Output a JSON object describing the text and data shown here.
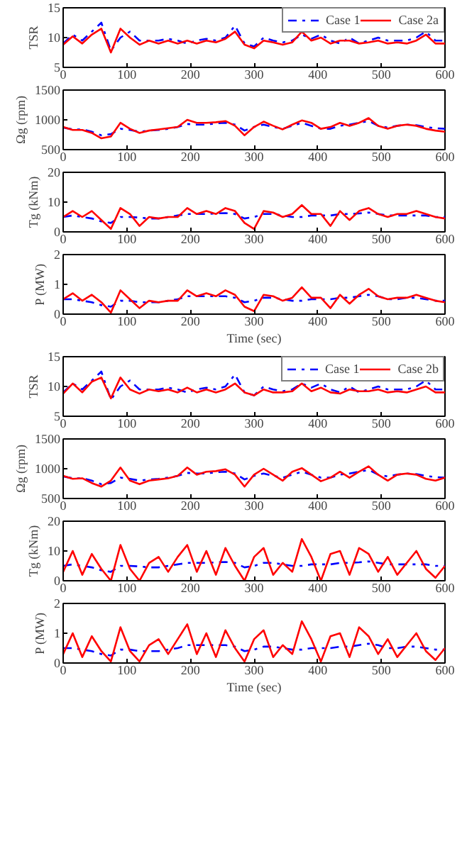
{
  "chart_data": [
    {
      "type": "line",
      "x": [
        0,
        15,
        30,
        45,
        60,
        75,
        90,
        105,
        120,
        135,
        150,
        165,
        180,
        195,
        210,
        225,
        240,
        255,
        270,
        285,
        300,
        315,
        330,
        345,
        360,
        375,
        390,
        405,
        420,
        435,
        450,
        465,
        480,
        495,
        510,
        525,
        540,
        555,
        570,
        585,
        600
      ],
      "ylabel": "TSR",
      "xlim": [
        0,
        600
      ],
      "xticks": [
        0,
        100,
        200,
        300,
        400,
        500,
        600
      ],
      "ylim": [
        5,
        15
      ],
      "yticks": [
        5,
        10,
        15
      ],
      "legend": "top right",
      "series": [
        {
          "name": "Case 1",
          "color": "#0000ff",
          "line_style": "dashed",
          "values": [
            9,
            10.5,
            9.5,
            11,
            12.5,
            7.8,
            10,
            11,
            9.5,
            9.5,
            9.5,
            9.8,
            9.5,
            9,
            9.5,
            9.8,
            9.5,
            10,
            12,
            9,
            8.5,
            10,
            9.5,
            9.2,
            9.5,
            10.5,
            9.8,
            10.5,
            9.5,
            9,
            10,
            9,
            9.5,
            10,
            9.5,
            9.5,
            9.5,
            10,
            11,
            9.5,
            9.5
          ]
        },
        {
          "name": "Case 2a",
          "color": "#ff0000",
          "line_style": "solid",
          "values": [
            8.8,
            10.2,
            9,
            10.5,
            11.5,
            7.5,
            11.5,
            10,
            8.8,
            9.5,
            9,
            9.5,
            9,
            9.5,
            9,
            9.5,
            9.2,
            9.8,
            11,
            8.8,
            8.2,
            9.5,
            9.2,
            8.8,
            9.2,
            11,
            9.5,
            10,
            9,
            9.5,
            9.5,
            9,
            9.2,
            9.5,
            9,
            9.2,
            9,
            9.5,
            10.5,
            9,
            9
          ]
        }
      ]
    },
    {
      "type": "line",
      "x": [
        0,
        15,
        30,
        45,
        60,
        75,
        90,
        105,
        120,
        135,
        150,
        165,
        180,
        195,
        210,
        225,
        240,
        255,
        270,
        285,
        300,
        315,
        330,
        345,
        360,
        375,
        390,
        405,
        420,
        435,
        450,
        465,
        480,
        495,
        510,
        525,
        540,
        555,
        570,
        585,
        600
      ],
      "ylabel": "Ωg (rpm)",
      "xlim": [
        0,
        600
      ],
      "xticks": [
        0,
        100,
        200,
        300,
        400,
        500,
        600
      ],
      "ylim": [
        500,
        1500
      ],
      "yticks": [
        500,
        1000,
        1500
      ],
      "series": [
        {
          "color": "#0000ff",
          "line_style": "dashed",
          "values": [
            870,
            840,
            840,
            800,
            740,
            760,
            850,
            830,
            800,
            820,
            830,
            850,
            880,
            930,
            920,
            920,
            940,
            950,
            920,
            820,
            880,
            920,
            880,
            850,
            900,
            950,
            900,
            850,
            850,
            900,
            920,
            950,
            980,
            900,
            870,
            900,
            920,
            910,
            880,
            860,
            850
          ]
        },
        {
          "color": "#ff0000",
          "line_style": "solid",
          "values": [
            880,
            830,
            830,
            780,
            690,
            720,
            950,
            850,
            780,
            820,
            840,
            860,
            880,
            1000,
            950,
            950,
            960,
            980,
            900,
            740,
            880,
            970,
            900,
            840,
            920,
            990,
            950,
            850,
            880,
            950,
            900,
            950,
            1030,
            900,
            850,
            900,
            920,
            900,
            850,
            820,
            800
          ]
        }
      ]
    },
    {
      "type": "line",
      "x": [
        0,
        15,
        30,
        45,
        60,
        75,
        90,
        105,
        120,
        135,
        150,
        165,
        180,
        195,
        210,
        225,
        240,
        255,
        270,
        285,
        300,
        315,
        330,
        345,
        360,
        375,
        390,
        405,
        420,
        435,
        450,
        465,
        480,
        495,
        510,
        525,
        540,
        555,
        570,
        585,
        600
      ],
      "ylabel": "Tg (kNm)",
      "xlim": [
        0,
        600
      ],
      "xticks": [
        0,
        100,
        200,
        300,
        400,
        500,
        600
      ],
      "ylim": [
        0,
        20
      ],
      "yticks": [
        0,
        10,
        20
      ],
      "series": [
        {
          "color": "#0000ff",
          "line_style": "dashed",
          "values": [
            5,
            5.5,
            5,
            4.5,
            3.5,
            3,
            5,
            5,
            4.8,
            4.5,
            4.5,
            5,
            5.5,
            6,
            6,
            6,
            6.2,
            6.3,
            6,
            4.5,
            5,
            6,
            6,
            5.5,
            5,
            5,
            5.5,
            5.5,
            5.5,
            6,
            6,
            6.2,
            6.5,
            6,
            5.5,
            5.5,
            5.5,
            5.5,
            5.5,
            5,
            5
          ]
        },
        {
          "color": "#ff0000",
          "line_style": "solid",
          "values": [
            5,
            7,
            5,
            7,
            4,
            1,
            8,
            6,
            2,
            5,
            4.5,
            5,
            5,
            8,
            6,
            7,
            6,
            8,
            7,
            3,
            1,
            7,
            6.5,
            5,
            6,
            9,
            6,
            6,
            2,
            7,
            4,
            7,
            8,
            6,
            5,
            6,
            6,
            7,
            6,
            5,
            4.5
          ]
        }
      ]
    },
    {
      "type": "line",
      "x": [
        0,
        15,
        30,
        45,
        60,
        75,
        90,
        105,
        120,
        135,
        150,
        165,
        180,
        195,
        210,
        225,
        240,
        255,
        270,
        285,
        300,
        315,
        330,
        345,
        360,
        375,
        390,
        405,
        420,
        435,
        450,
        465,
        480,
        495,
        510,
        525,
        540,
        555,
        570,
        585,
        600
      ],
      "ylabel": "P (MW)",
      "xlabel": "Time (sec)",
      "xlim": [
        0,
        600
      ],
      "xticks": [
        0,
        100,
        200,
        300,
        400,
        500,
        600
      ],
      "ylim": [
        0,
        2
      ],
      "yticks": [
        0,
        1,
        2
      ],
      "series": [
        {
          "color": "#0000ff",
          "line_style": "dashed",
          "values": [
            0.5,
            0.5,
            0.45,
            0.4,
            0.3,
            0.25,
            0.45,
            0.45,
            0.4,
            0.4,
            0.4,
            0.45,
            0.5,
            0.6,
            0.6,
            0.6,
            0.6,
            0.6,
            0.55,
            0.4,
            0.45,
            0.55,
            0.55,
            0.5,
            0.45,
            0.45,
            0.5,
            0.5,
            0.5,
            0.55,
            0.55,
            0.6,
            0.65,
            0.6,
            0.5,
            0.5,
            0.55,
            0.55,
            0.5,
            0.45,
            0.45
          ]
        },
        {
          "color": "#ff0000",
          "line_style": "solid",
          "values": [
            0.5,
            0.7,
            0.45,
            0.65,
            0.4,
            0.05,
            0.8,
            0.5,
            0.2,
            0.45,
            0.4,
            0.45,
            0.45,
            0.8,
            0.6,
            0.7,
            0.6,
            0.8,
            0.65,
            0.25,
            0.1,
            0.65,
            0.6,
            0.45,
            0.55,
            0.9,
            0.55,
            0.55,
            0.2,
            0.65,
            0.35,
            0.65,
            0.85,
            0.6,
            0.5,
            0.55,
            0.55,
            0.65,
            0.55,
            0.45,
            0.4
          ]
        }
      ]
    },
    {
      "type": "line",
      "x": [
        0,
        15,
        30,
        45,
        60,
        75,
        90,
        105,
        120,
        135,
        150,
        165,
        180,
        195,
        210,
        225,
        240,
        255,
        270,
        285,
        300,
        315,
        330,
        345,
        360,
        375,
        390,
        405,
        420,
        435,
        450,
        465,
        480,
        495,
        510,
        525,
        540,
        555,
        570,
        585,
        600
      ],
      "ylabel": "TSR",
      "xlim": [
        0,
        600
      ],
      "xticks": [
        0,
        100,
        200,
        300,
        400,
        500,
        600
      ],
      "ylim": [
        5,
        15
      ],
      "yticks": [
        5,
        10,
        15
      ],
      "legend": "top right",
      "series": [
        {
          "name": "Case 1",
          "color": "#0000ff",
          "line_style": "dashed",
          "values": [
            9,
            10.5,
            9.5,
            11,
            12.5,
            7.8,
            10,
            11,
            9.5,
            9.5,
            9.5,
            9.8,
            9.5,
            9,
            9.5,
            9.8,
            9.5,
            10,
            12,
            9,
            8.5,
            10,
            9.5,
            9.2,
            9.5,
            10.5,
            9.8,
            10.5,
            9.5,
            9,
            10,
            9,
            9.5,
            10,
            9.5,
            9.5,
            9.5,
            10,
            11,
            9.5,
            9.5
          ]
        },
        {
          "name": "Case 2b",
          "color": "#ff0000",
          "line_style": "solid",
          "values": [
            8.8,
            10.5,
            9,
            10.8,
            11.5,
            8,
            11.5,
            9.5,
            8.8,
            9.5,
            9.2,
            9.5,
            9,
            9.8,
            9,
            9.5,
            9,
            9.5,
            10.5,
            9,
            8.5,
            9.5,
            9,
            9,
            9.2,
            10.5,
            9.2,
            9.8,
            9,
            8.8,
            9.5,
            9.2,
            9.2,
            9.5,
            9,
            9.2,
            9,
            9.5,
            10,
            9,
            9
          ]
        }
      ]
    },
    {
      "type": "line",
      "x": [
        0,
        15,
        30,
        45,
        60,
        75,
        90,
        105,
        120,
        135,
        150,
        165,
        180,
        195,
        210,
        225,
        240,
        255,
        270,
        285,
        300,
        315,
        330,
        345,
        360,
        375,
        390,
        405,
        420,
        435,
        450,
        465,
        480,
        495,
        510,
        525,
        540,
        555,
        570,
        585,
        600
      ],
      "ylabel": "Ωg (rpm)",
      "xlim": [
        0,
        600
      ],
      "xticks": [
        0,
        100,
        200,
        300,
        400,
        500,
        600
      ],
      "ylim": [
        500,
        1500
      ],
      "yticks": [
        500,
        1000,
        1500
      ],
      "series": [
        {
          "color": "#0000ff",
          "line_style": "dashed",
          "values": [
            870,
            840,
            840,
            800,
            740,
            760,
            850,
            830,
            800,
            820,
            830,
            850,
            880,
            930,
            920,
            920,
            940,
            950,
            920,
            820,
            880,
            920,
            880,
            850,
            900,
            950,
            900,
            850,
            850,
            900,
            920,
            950,
            980,
            900,
            870,
            900,
            920,
            910,
            880,
            860,
            850
          ]
        },
        {
          "color": "#ff0000",
          "line_style": "solid",
          "values": [
            880,
            830,
            840,
            760,
            700,
            800,
            1020,
            800,
            740,
            800,
            820,
            840,
            880,
            1020,
            900,
            950,
            960,
            990,
            900,
            700,
            900,
            1000,
            900,
            800,
            950,
            1010,
            900,
            790,
            850,
            950,
            850,
            950,
            1040,
            900,
            800,
            900,
            920,
            900,
            830,
            800,
            850
          ]
        }
      ]
    },
    {
      "type": "line",
      "x": [
        0,
        15,
        30,
        45,
        60,
        75,
        90,
        105,
        120,
        135,
        150,
        165,
        180,
        195,
        210,
        225,
        240,
        255,
        270,
        285,
        300,
        315,
        330,
        345,
        360,
        375,
        390,
        405,
        420,
        435,
        450,
        465,
        480,
        495,
        510,
        525,
        540,
        555,
        570,
        585,
        600
      ],
      "ylabel": "Tg (kNm)",
      "xlim": [
        0,
        600
      ],
      "xticks": [
        0,
        100,
        200,
        300,
        400,
        500,
        600
      ],
      "ylim": [
        0,
        20
      ],
      "yticks": [
        0,
        10,
        20
      ],
      "series": [
        {
          "color": "#0000ff",
          "line_style": "dashed",
          "values": [
            5,
            5.5,
            5,
            4.5,
            3.5,
            3,
            5,
            5,
            4.8,
            4.5,
            4.5,
            5,
            5.5,
            6,
            6,
            6,
            6.2,
            6.3,
            6,
            4.5,
            5,
            6,
            6,
            5.5,
            5,
            5,
            5.5,
            5.5,
            5.5,
            6,
            6,
            6.2,
            6.5,
            6,
            5.5,
            5.5,
            5.5,
            5.5,
            5.5,
            5,
            5
          ]
        },
        {
          "color": "#ff0000",
          "line_style": "solid",
          "values": [
            3,
            10,
            2,
            9,
            4,
            0,
            12,
            4,
            0,
            6,
            8,
            3,
            8,
            12,
            3,
            10,
            2,
            11,
            5,
            0,
            8,
            11,
            2,
            6,
            3,
            14,
            8,
            0,
            9,
            10,
            2,
            11,
            9,
            3,
            8,
            2,
            6,
            10,
            4,
            1,
            5
          ]
        }
      ]
    },
    {
      "type": "line",
      "x": [
        0,
        15,
        30,
        45,
        60,
        75,
        90,
        105,
        120,
        135,
        150,
        165,
        180,
        195,
        210,
        225,
        240,
        255,
        270,
        285,
        300,
        315,
        330,
        345,
        360,
        375,
        390,
        405,
        420,
        435,
        450,
        465,
        480,
        495,
        510,
        525,
        540,
        555,
        570,
        585,
        600
      ],
      "ylabel": "P (MW)",
      "xlabel": "Time (sec)",
      "xlim": [
        0,
        600
      ],
      "xticks": [
        0,
        100,
        200,
        300,
        400,
        500,
        600
      ],
      "ylim": [
        0,
        2
      ],
      "yticks": [
        0,
        1,
        2
      ],
      "series": [
        {
          "color": "#0000ff",
          "line_style": "dashed",
          "values": [
            0.5,
            0.5,
            0.45,
            0.4,
            0.3,
            0.25,
            0.45,
            0.45,
            0.4,
            0.4,
            0.4,
            0.45,
            0.5,
            0.6,
            0.6,
            0.6,
            0.6,
            0.6,
            0.55,
            0.4,
            0.45,
            0.55,
            0.55,
            0.5,
            0.45,
            0.45,
            0.5,
            0.5,
            0.5,
            0.55,
            0.55,
            0.6,
            0.65,
            0.6,
            0.5,
            0.5,
            0.55,
            0.55,
            0.5,
            0.45,
            0.45
          ]
        },
        {
          "color": "#ff0000",
          "line_style": "solid",
          "values": [
            0.3,
            1.0,
            0.2,
            0.9,
            0.4,
            0.05,
            1.2,
            0.4,
            0.05,
            0.6,
            0.8,
            0.3,
            0.8,
            1.3,
            0.3,
            1.0,
            0.2,
            1.1,
            0.5,
            0.05,
            0.8,
            1.1,
            0.2,
            0.6,
            0.3,
            1.4,
            0.8,
            0.05,
            0.9,
            1.0,
            0.2,
            1.2,
            0.9,
            0.3,
            0.8,
            0.2,
            0.6,
            1.0,
            0.4,
            0.1,
            0.5
          ]
        }
      ]
    }
  ]
}
